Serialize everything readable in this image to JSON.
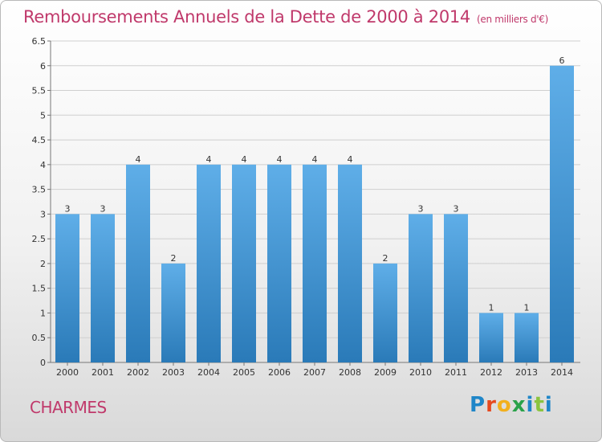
{
  "header": {
    "title": "Remboursements Annuels de la Dette de 2000 à 2014",
    "subtitle": "(en milliers d'€)"
  },
  "footer": {
    "commune": "CHARMES",
    "logo_text": "Proxiti"
  },
  "colors": {
    "title": "#c0396b",
    "bar_light": "#5faee8",
    "bar_dark": "#2a7ab8",
    "grid": "#cfcfcf"
  },
  "chart_data": {
    "type": "bar",
    "title": "Remboursements Annuels de la Dette de 2000 à 2014",
    "subtitle": "(en milliers d'€)",
    "xlabel": "",
    "ylabel": "",
    "categories": [
      "2000",
      "2001",
      "2002",
      "2003",
      "2004",
      "2005",
      "2006",
      "2007",
      "2008",
      "2009",
      "2010",
      "2011",
      "2012",
      "2013",
      "2014"
    ],
    "values": [
      3,
      3,
      4,
      2,
      4,
      4,
      4,
      4,
      4,
      2,
      3,
      3,
      1,
      1,
      6
    ],
    "ylim": [
      0,
      6.5
    ],
    "yticks": [
      "0",
      "0.5",
      "1",
      "1.5",
      "2",
      "2.5",
      "3",
      "3.5",
      "4",
      "4.5",
      "5",
      "5.5",
      "6",
      "6.5"
    ],
    "grid": true,
    "legend": "none"
  }
}
